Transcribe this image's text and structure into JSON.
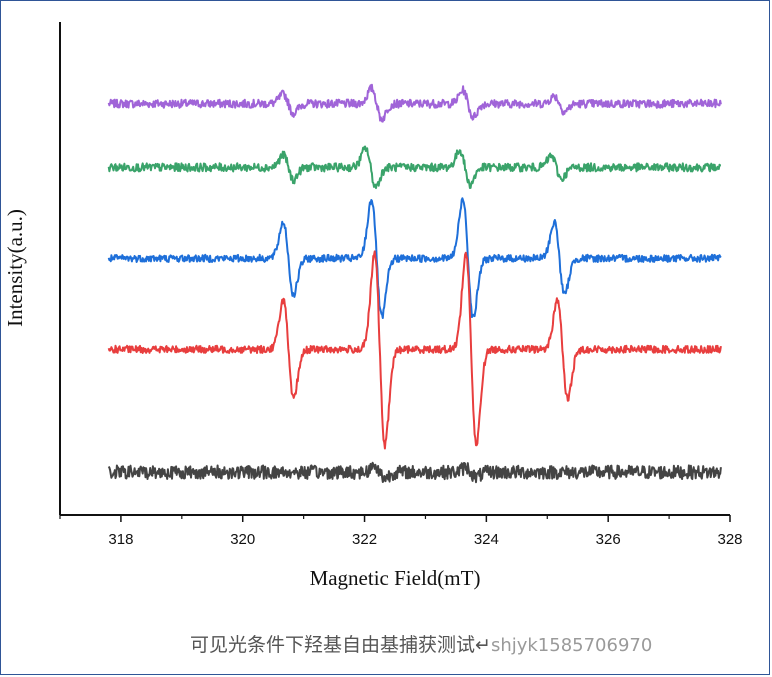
{
  "chart_data": {
    "type": "line",
    "xlabel": "Magnetic Field(mT)",
    "ylabel": "Intensity(a.u.)",
    "xlim": [
      317,
      328
    ],
    "xticks": [
      318,
      320,
      322,
      324,
      326,
      328
    ],
    "grid": false,
    "legend": "none",
    "series": [
      {
        "color": "#a064d8",
        "baseline": 0.86,
        "noise": 0.018,
        "peaks": [
          [
            320.75,
            0.1
          ],
          [
            322.2,
            0.16
          ],
          [
            323.7,
            0.14
          ],
          [
            325.2,
            0.08
          ]
        ]
      },
      {
        "color": "#3aa36a",
        "baseline": 0.72,
        "noise": 0.018,
        "peaks": [
          [
            320.75,
            0.13
          ],
          [
            322.1,
            0.2
          ],
          [
            323.65,
            0.18
          ],
          [
            325.15,
            0.12
          ]
        ]
      },
      {
        "color": "#1e6fd9",
        "baseline": 0.52,
        "noise": 0.016,
        "peaks": [
          [
            320.75,
            0.38
          ],
          [
            322.2,
            0.62
          ],
          [
            323.7,
            0.62
          ],
          [
            325.2,
            0.38
          ]
        ]
      },
      {
        "color": "#e83e3e",
        "baseline": 0.32,
        "noise": 0.016,
        "peaks": [
          [
            320.75,
            0.52
          ],
          [
            322.25,
            1.0
          ],
          [
            323.75,
            1.0
          ],
          [
            325.25,
            0.52
          ]
        ]
      },
      {
        "color": "#444444",
        "baseline": 0.05,
        "noise": 0.03,
        "peaks": [
          [
            322.25,
            0.06
          ],
          [
            323.75,
            0.05
          ]
        ]
      }
    ]
  },
  "caption": {
    "text": "可见光条件下羟基自由基捕获测试",
    "mark": "↵",
    "watermark": "shjyk1585706970"
  }
}
